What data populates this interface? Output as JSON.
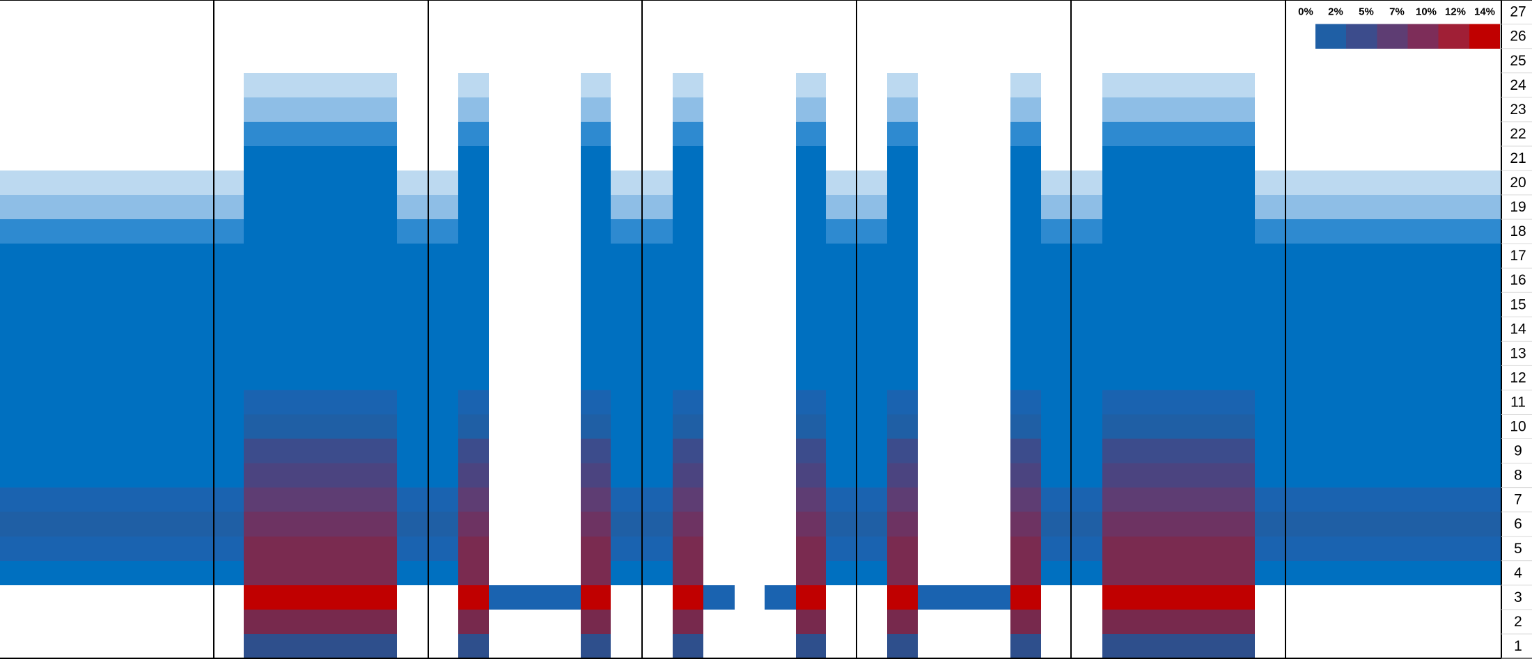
{
  "chart_data": {
    "type": "heatmap",
    "rows": [
      "1",
      "2",
      "3",
      "4",
      "5",
      "6",
      "7",
      "8",
      "9",
      "10",
      "11",
      "12",
      "13",
      "14",
      "15",
      "16",
      "17",
      "18",
      "19",
      "20",
      "21",
      "22",
      "23",
      "24",
      "25",
      "26",
      "27"
    ],
    "legend": {
      "labels": [
        "0%",
        "2%",
        "5%",
        "7%",
        "10%",
        "12%",
        "14%"
      ],
      "colors": [
        "#1f5fa5",
        "#3c4c8c",
        "#5e3d73",
        "#7d2d59",
        "#a01f36",
        "#c00000"
      ]
    },
    "fill_palette": {
      "blue": "#0070c0",
      "light1": "#2e8ad0",
      "light2": "#8ebee6",
      "light3": "#bcd9f0",
      "h_2pct": "#1a63b0",
      "h_5pct": "#1f5fa5",
      "h_7pct": "#2e569c",
      "h_10pct": "#3c4c8c",
      "h_12pct": "#4b4480",
      "h_14pct": "#5e3d73",
      "h_16pct": "#6d3362",
      "h_18pct": "#7a2b50",
      "red": "#c00000",
      "h_row2": "#77294d",
      "h_row1": "#2e4f8c"
    }
  }
}
